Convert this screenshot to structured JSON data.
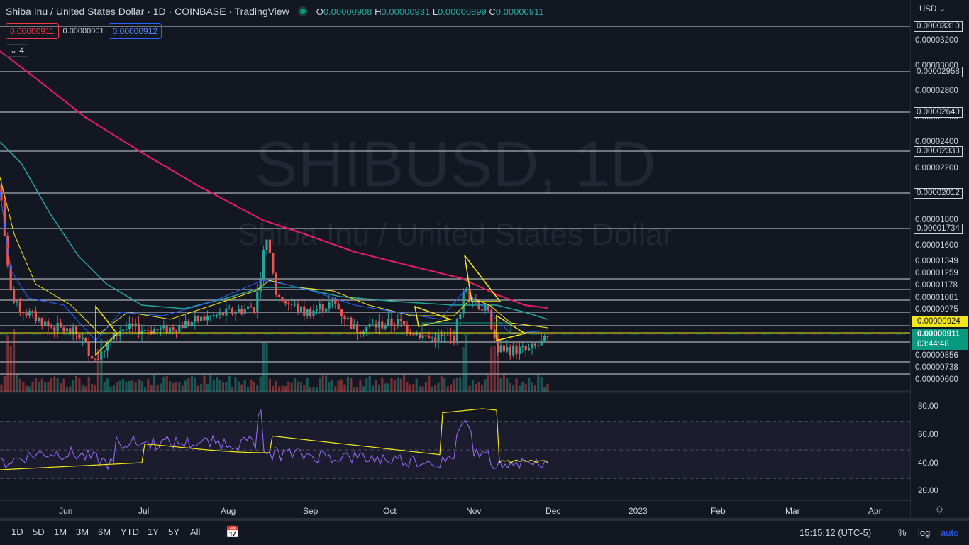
{
  "header": {
    "title": "Shiba Inu / United States Dollar · 1D · COINBASE · TradingView",
    "ohlc": {
      "o_label": "O",
      "o": "0.00000908",
      "h_label": "H",
      "h": "0.00000931",
      "l_label": "L",
      "l": "0.00000899",
      "c_label": "C",
      "c": "0.00000911"
    }
  },
  "order": {
    "sell": "0.00000911",
    "spread": "0.00000001",
    "buy": "0.00000912"
  },
  "indicators_count": "4",
  "watermark": {
    "symbol": "SHIBUSD, 1D",
    "name": "Shiba Inu / United States Dollar"
  },
  "price_axis": {
    "currency": "USD",
    "ticks": [
      "0.00003200",
      "0.00003000",
      "0.00002800",
      "0.00002600",
      "0.00002400",
      "0.00002200",
      "0.00001800",
      "0.00001600"
    ],
    "levels": [
      "0.00003310",
      "0.00002958",
      "0.00002640",
      "0.00002333",
      "0.00002012",
      "0.00001734",
      "0.00001349",
      "0.00001259",
      "0.00001178",
      "0.00001081",
      "0.00000975",
      "0.00000856",
      "0.00000738",
      "0.00000600"
    ],
    "current_ma": "0.00000924",
    "current_price": "0.00000911",
    "countdown": "03:44:48"
  },
  "rsi_axis": [
    "80.00",
    "60.00",
    "40.00",
    "20.00"
  ],
  "time_axis": [
    "Jun",
    "Jul",
    "Aug",
    "Sep",
    "Oct",
    "Nov",
    "Dec",
    "2023",
    "Feb",
    "Mar",
    "Apr"
  ],
  "timeframes": [
    "1D",
    "5D",
    "1M",
    "3M",
    "6M",
    "YTD",
    "1Y",
    "5Y",
    "All"
  ],
  "bottom": {
    "clock": "15:15:12 (UTC-5)",
    "percent": "%",
    "log": "log",
    "auto": "auto"
  },
  "colors": {
    "bg": "#131722",
    "up": "#26a69a",
    "down": "#ef5350",
    "ma200": "#e91e63",
    "ma50": "#26a69a",
    "ma20": "#f5e61a",
    "ma10": "#2962ff",
    "rsi": "#9c6dff",
    "accent": "#2962ff"
  }
}
